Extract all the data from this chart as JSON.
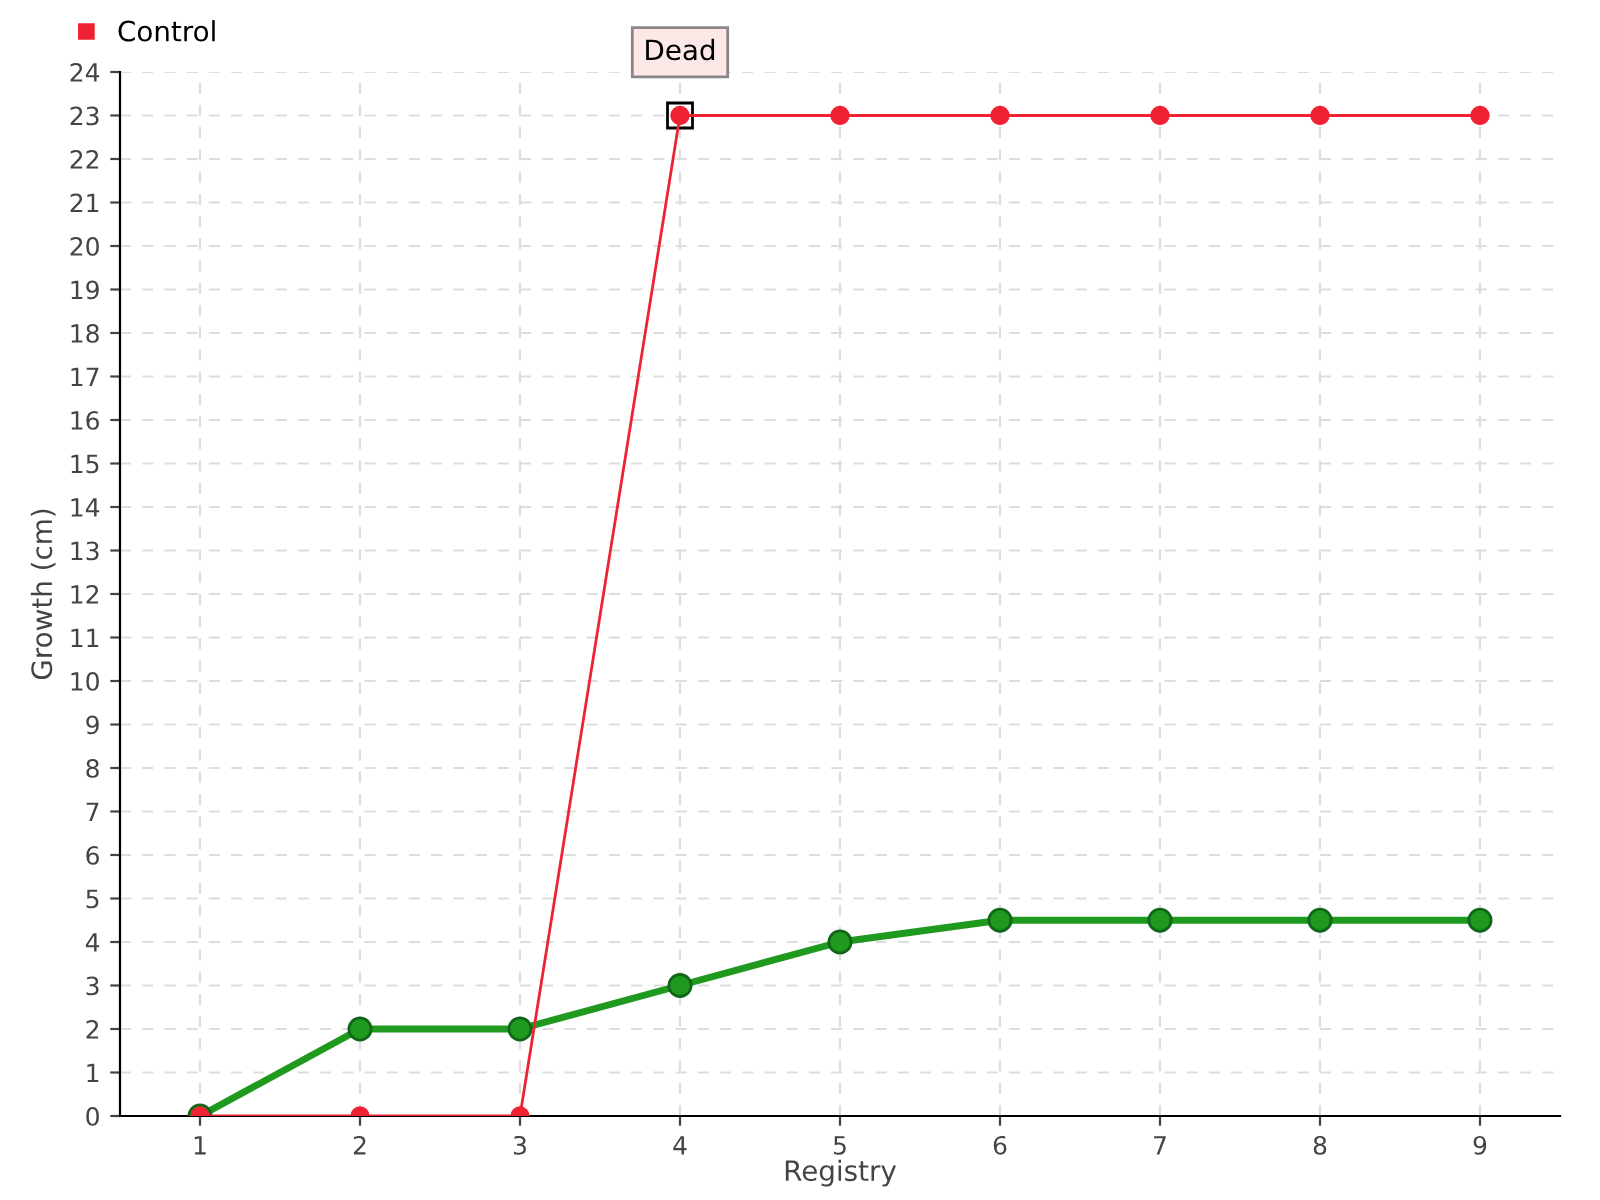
{
  "chart_data": {
    "type": "line",
    "xlabel": "Registry",
    "ylabel": "Growth (cm)",
    "categories": [
      "1",
      "2",
      "3",
      "4",
      "5",
      "6",
      "7",
      "8",
      "9"
    ],
    "series": [
      {
        "color": "#1f9a1f",
        "values": [
          0,
          2,
          2,
          3,
          4,
          4.5,
          4.5,
          4.5,
          4.5
        ]
      },
      {
        "name": "Control",
        "color": "#ee2233",
        "values": [
          0,
          0,
          0,
          23,
          23,
          23,
          23,
          23,
          23
        ]
      }
    ],
    "annotations": [
      {
        "text": "Dead",
        "x": "4",
        "y": 23
      }
    ],
    "ylim": [
      0,
      24
    ],
    "yticks": [
      0,
      1,
      2,
      3,
      4,
      5,
      6,
      7,
      8,
      9,
      10,
      11,
      12,
      13,
      14,
      15,
      16,
      17,
      18,
      19,
      20,
      21,
      22,
      23,
      24
    ],
    "grid": true,
    "legend": "top left",
    "marker": "circle",
    "line_style": "solid"
  }
}
